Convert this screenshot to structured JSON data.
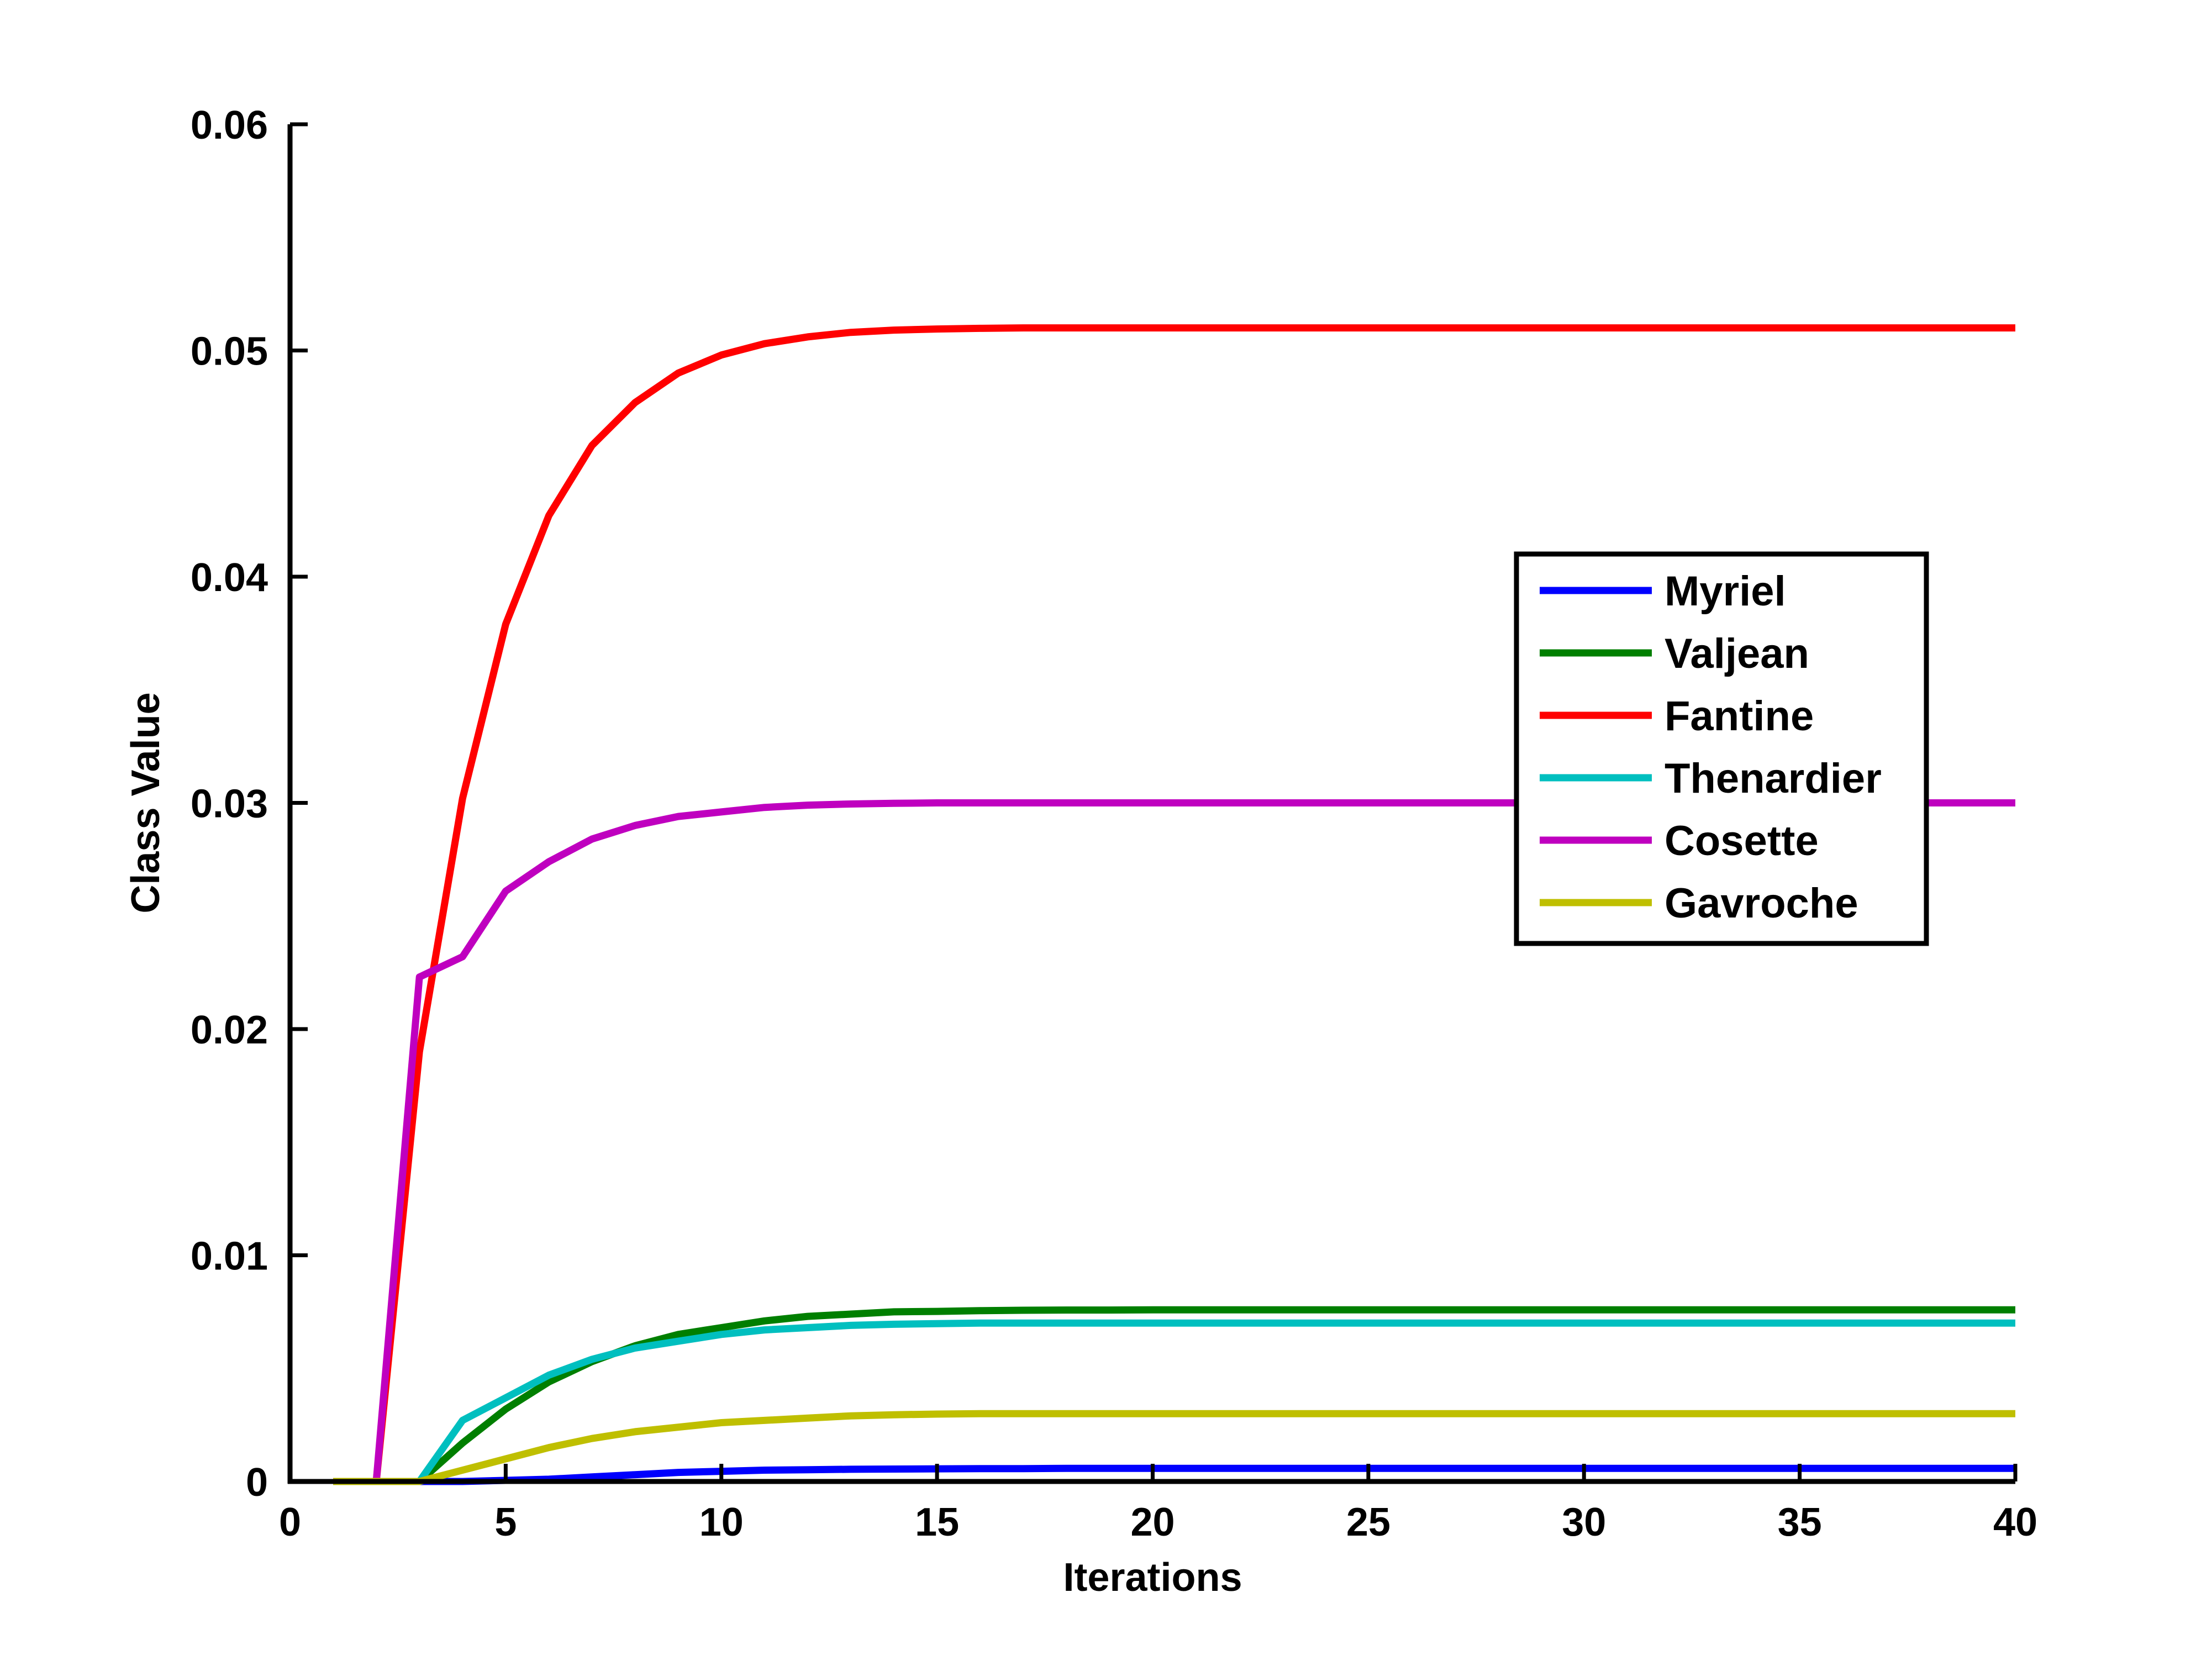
{
  "chart_data": {
    "type": "line",
    "title": "",
    "xlabel": "Iterations",
    "ylabel": "Class Value",
    "xlim": [
      0,
      40
    ],
    "ylim": [
      0,
      0.06
    ],
    "xticks": [
      0,
      5,
      10,
      15,
      20,
      25,
      30,
      35,
      40
    ],
    "xtick_labels": [
      "0",
      "5",
      "10",
      "15",
      "20",
      "25",
      "30",
      "35",
      "40"
    ],
    "yticks": [
      0,
      0.01,
      0.02,
      0.03,
      0.04,
      0.05,
      0.06
    ],
    "ytick_labels": [
      "0",
      "0.01",
      "0.02",
      "0.03",
      "0.04",
      "0.05",
      "0.06"
    ],
    "grid": false,
    "legend_position": "right",
    "x": [
      1,
      2,
      3,
      4,
      5,
      6,
      7,
      8,
      9,
      10,
      11,
      12,
      13,
      14,
      15,
      16,
      17,
      18,
      19,
      20,
      21,
      22,
      23,
      24,
      25,
      26,
      27,
      28,
      29,
      30,
      31,
      32,
      33,
      34,
      35,
      36,
      37,
      38,
      39,
      40
    ],
    "series": [
      {
        "name": "Myriel",
        "color": "#0000ff",
        "values": [
          0,
          0,
          0,
          0,
          5e-05,
          0.0001,
          0.0002,
          0.0003,
          0.0004,
          0.00045,
          0.0005,
          0.00052,
          0.00054,
          0.00055,
          0.00056,
          0.00057,
          0.00057,
          0.00058,
          0.00058,
          0.00058,
          0.00058,
          0.00058,
          0.00058,
          0.00058,
          0.00058,
          0.00058,
          0.00058,
          0.00058,
          0.00058,
          0.00058,
          0.00058,
          0.00058,
          0.00058,
          0.00058,
          0.00058,
          0.00058,
          0.00058,
          0.00058,
          0.00058,
          0.00058
        ]
      },
      {
        "name": "Valjean",
        "color": "#007f00",
        "values": [
          0,
          0,
          0,
          0.0017,
          0.0032,
          0.0044,
          0.0053,
          0.006,
          0.0065,
          0.0068,
          0.0071,
          0.0073,
          0.0074,
          0.0075,
          0.00752,
          0.00755,
          0.00757,
          0.00758,
          0.00758,
          0.00759,
          0.00759,
          0.00759,
          0.00759,
          0.00759,
          0.00759,
          0.00759,
          0.00759,
          0.00759,
          0.00759,
          0.00759,
          0.00759,
          0.00759,
          0.00759,
          0.00759,
          0.00759,
          0.00759,
          0.00759,
          0.00759,
          0.00759,
          0.00759
        ]
      },
      {
        "name": "Fantine",
        "color": "#ff0000",
        "values": [
          0,
          0,
          0.019,
          0.0302,
          0.0379,
          0.0427,
          0.0458,
          0.0477,
          0.049,
          0.0498,
          0.0503,
          0.0506,
          0.0508,
          0.0509,
          0.05095,
          0.05098,
          0.051,
          0.051,
          0.051,
          0.051,
          0.051,
          0.051,
          0.051,
          0.051,
          0.051,
          0.051,
          0.051,
          0.051,
          0.051,
          0.051,
          0.051,
          0.051,
          0.051,
          0.051,
          0.051,
          0.051,
          0.051,
          0.051,
          0.051,
          0.051
        ]
      },
      {
        "name": "Thenardier",
        "color": "#00bfbf",
        "values": [
          0,
          0,
          0,
          0.0027,
          0.0037,
          0.0047,
          0.0054,
          0.0059,
          0.0062,
          0.0065,
          0.0067,
          0.0068,
          0.0069,
          0.00695,
          0.00698,
          0.007,
          0.007,
          0.007,
          0.007,
          0.007,
          0.007,
          0.007,
          0.007,
          0.007,
          0.007,
          0.007,
          0.007,
          0.007,
          0.007,
          0.007,
          0.007,
          0.007,
          0.007,
          0.007,
          0.007,
          0.007,
          0.007,
          0.007,
          0.007,
          0.007
        ]
      },
      {
        "name": "Cosette",
        "color": "#bf00bf",
        "values": [
          0,
          0,
          0.0223,
          0.0232,
          0.0261,
          0.0274,
          0.0284,
          0.029,
          0.0294,
          0.0296,
          0.0298,
          0.0299,
          0.02995,
          0.02998,
          0.03,
          0.03,
          0.03,
          0.03,
          0.03,
          0.03,
          0.03,
          0.03,
          0.03,
          0.03,
          0.03,
          0.03,
          0.03,
          0.03,
          0.03,
          0.03,
          0.03,
          0.03,
          0.03,
          0.03,
          0.03,
          0.03,
          0.03,
          0.03,
          0.03,
          0.03
        ]
      },
      {
        "name": "Gavroche",
        "color": "#bfbf00",
        "values": [
          0,
          0,
          0,
          0.0005,
          0.001,
          0.0015,
          0.0019,
          0.0022,
          0.0024,
          0.0026,
          0.0027,
          0.0028,
          0.0029,
          0.00295,
          0.00298,
          0.003,
          0.003,
          0.003,
          0.003,
          0.003,
          0.003,
          0.003,
          0.003,
          0.003,
          0.003,
          0.003,
          0.003,
          0.003,
          0.003,
          0.003,
          0.003,
          0.003,
          0.003,
          0.003,
          0.003,
          0.003,
          0.003,
          0.003,
          0.003,
          0.003
        ]
      }
    ]
  }
}
